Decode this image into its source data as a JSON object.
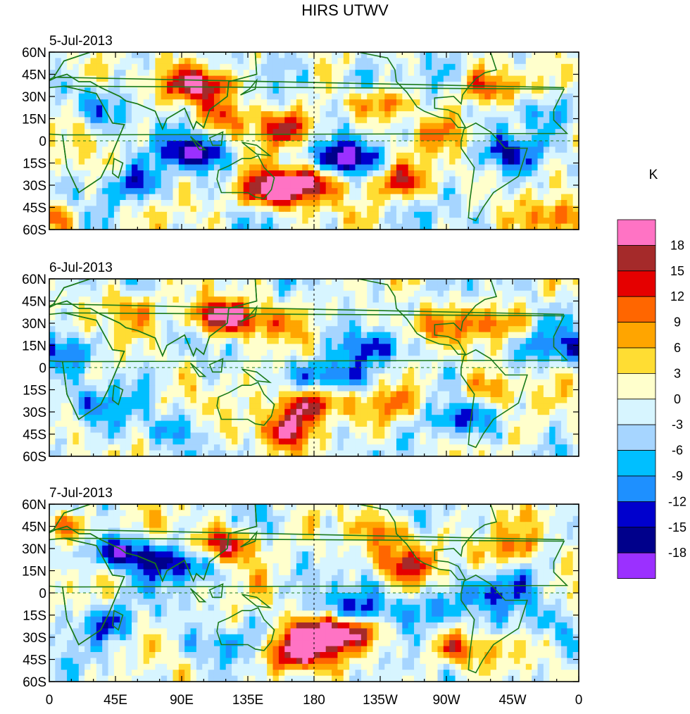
{
  "chart_data": {
    "type": "heatmap",
    "title": "HIRS UTWV",
    "variable": "HIRS UTWV",
    "units": "K",
    "colorbar": {
      "label": "K",
      "levels": [
        18,
        15,
        12,
        9,
        6,
        3,
        0,
        -3,
        -6,
        -9,
        -12,
        -15,
        -18
      ],
      "colors": [
        "#ff73c4",
        "#a52a2a",
        "#e50000",
        "#ff6600",
        "#ffa500",
        "#ffdd33",
        "#ffffcc",
        "#d7f5ff",
        "#a6d5ff",
        "#00bfff",
        "#1e90ff",
        "#0000cd",
        "#00008b",
        "#9b30ff"
      ]
    },
    "x_ticks": [
      "0",
      "45E",
      "90E",
      "135E",
      "180",
      "135W",
      "90W",
      "45W",
      "0"
    ],
    "y_ticks": [
      "60N",
      "45N",
      "30N",
      "15N",
      "0",
      "15S",
      "30S",
      "45S",
      "60S"
    ],
    "xlim": [
      0,
      360
    ],
    "ylim": [
      -60,
      60
    ],
    "panels": [
      {
        "date": "5-Jul-2013",
        "features": [
          {
            "lon": 105,
            "lat": 38,
            "value": 18
          },
          {
            "lon": 170,
            "lat": -28,
            "value": 18
          },
          {
            "lon": 150,
            "lat": -35,
            "value": 18
          },
          {
            "lon": 160,
            "lat": 8,
            "value": 12
          },
          {
            "lon": 120,
            "lat": 18,
            "value": 9
          },
          {
            "lon": 100,
            "lat": -8,
            "value": -15
          },
          {
            "lon": 200,
            "lat": -12,
            "value": -15
          },
          {
            "lon": 240,
            "lat": -28,
            "value": 12
          },
          {
            "lon": 355,
            "lat": -52,
            "value": 12
          },
          {
            "lon": 230,
            "lat": 25,
            "value": 9
          },
          {
            "lon": 295,
            "lat": 35,
            "value": 9
          },
          {
            "lon": 40,
            "lat": 20,
            "value": -6
          },
          {
            "lon": 60,
            "lat": -30,
            "value": -9
          },
          {
            "lon": 310,
            "lat": -8,
            "value": -9
          },
          {
            "lon": 270,
            "lat": 5,
            "value": 6
          },
          {
            "lon": 20,
            "lat": 48,
            "value": 6
          },
          {
            "lon": 330,
            "lat": 20,
            "value": -6
          },
          {
            "lon": 210,
            "lat": 40,
            "value": -6
          }
        ]
      },
      {
        "date": "6-Jul-2013",
        "features": [
          {
            "lon": 115,
            "lat": 35,
            "value": 18
          },
          {
            "lon": 175,
            "lat": -25,
            "value": 18
          },
          {
            "lon": 160,
            "lat": -42,
            "value": 15
          },
          {
            "lon": 140,
            "lat": 30,
            "value": 9
          },
          {
            "lon": 250,
            "lat": 28,
            "value": 9
          },
          {
            "lon": 300,
            "lat": 30,
            "value": 9
          },
          {
            "lon": 300,
            "lat": -15,
            "value": 9
          },
          {
            "lon": 195,
            "lat": -5,
            "value": -12
          },
          {
            "lon": 215,
            "lat": 15,
            "value": -9
          },
          {
            "lon": 50,
            "lat": 40,
            "value": 6
          },
          {
            "lon": 330,
            "lat": 15,
            "value": -6
          },
          {
            "lon": 30,
            "lat": -25,
            "value": -6
          },
          {
            "lon": 275,
            "lat": -35,
            "value": -9
          },
          {
            "lon": 80,
            "lat": -42,
            "value": -6
          },
          {
            "lon": 10,
            "lat": 10,
            "value": -9
          },
          {
            "lon": 235,
            "lat": -25,
            "value": 6
          }
        ]
      },
      {
        "date": "7-Jul-2013",
        "features": [
          {
            "lon": 180,
            "lat": -30,
            "value": 18
          },
          {
            "lon": 165,
            "lat": -42,
            "value": 15
          },
          {
            "lon": 200,
            "lat": -25,
            "value": 15
          },
          {
            "lon": 120,
            "lat": 32,
            "value": 15
          },
          {
            "lon": 240,
            "lat": 20,
            "value": 12
          },
          {
            "lon": 235,
            "lat": 40,
            "value": 9
          },
          {
            "lon": 310,
            "lat": 30,
            "value": 9
          },
          {
            "lon": 50,
            "lat": 27,
            "value": -15
          },
          {
            "lon": 90,
            "lat": 20,
            "value": -12
          },
          {
            "lon": 40,
            "lat": -20,
            "value": -9
          },
          {
            "lon": 210,
            "lat": -12,
            "value": -12
          },
          {
            "lon": 260,
            "lat": -10,
            "value": -9
          },
          {
            "lon": 300,
            "lat": 0,
            "value": -9
          },
          {
            "lon": 15,
            "lat": 45,
            "value": 9
          },
          {
            "lon": 325,
            "lat": -20,
            "value": -6
          },
          {
            "lon": 110,
            "lat": -35,
            "value": -6
          },
          {
            "lon": 275,
            "lat": -38,
            "value": 12
          }
        ]
      }
    ]
  }
}
